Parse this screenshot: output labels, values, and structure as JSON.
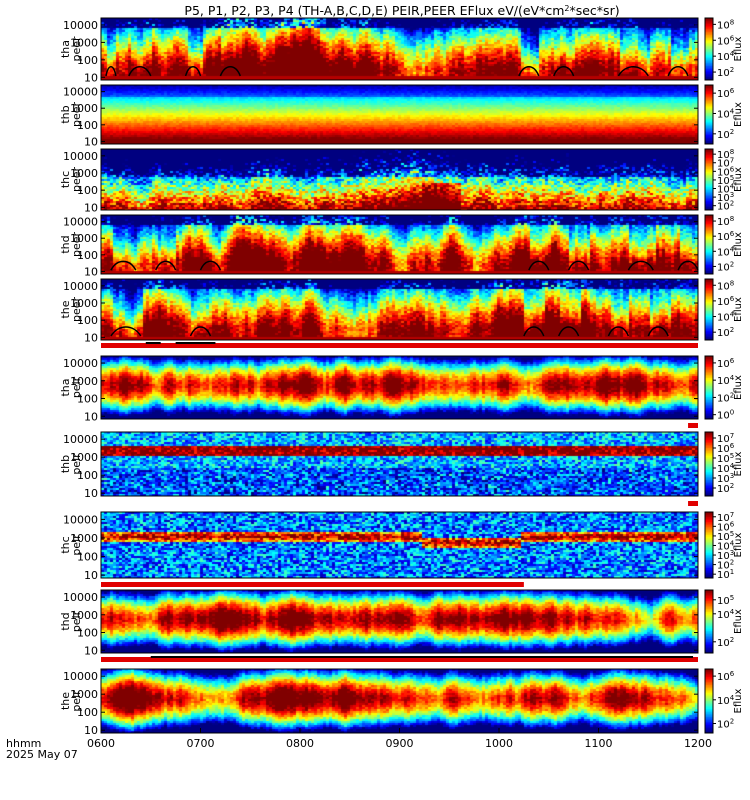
{
  "chart_data": {
    "type": "heatmap",
    "title": "P5, P1, P2, P3, P4 (TH-A,B,C,D,E) PEIR,PEER EFlux eV/(eV*cm² *sec*sr)",
    "title_main": "P5, P1, P2, P3, P4 (TH-A,B,C,D,E) PEIR,PEER EFlux eV/(eV*cm",
    "title_sup": "2",
    "title_tail": "*sec*sr)",
    "x_ticks": [
      "0600",
      "0700",
      "0800",
      "0900",
      "1000",
      "1100",
      "1200"
    ],
    "x_tick_hours": [
      6,
      7,
      8,
      9,
      10,
      11,
      12
    ],
    "xlim": [
      6,
      12
    ],
    "x_label_line1": "hhmm",
    "x_label_line2": "2025 May 07",
    "y_scale": "log",
    "ylim": [
      7,
      25000
    ],
    "y_ticks": [
      "10000",
      "1000",
      "100",
      "10"
    ],
    "y_tick_values": [
      10000,
      1000,
      100,
      10
    ],
    "colorbar_label": "Eflux",
    "panels": [
      {
        "probe": "tha",
        "species": "peer",
        "label_line1": "tha",
        "label_line2": "peer",
        "cb_exponents": [
          "8",
          "6",
          "4",
          "2"
        ],
        "cb_values": [
          8,
          6,
          4,
          2
        ],
        "cb_range": [
          1,
          8.8
        ],
        "seed": 11,
        "style": "electron",
        "sweeps": [
          [
            6.05,
            6.15
          ],
          [
            6.28,
            6.5
          ],
          [
            6.85,
            7.0
          ],
          [
            7.2,
            7.4
          ],
          [
            10.2,
            10.4
          ],
          [
            10.55,
            10.75
          ],
          [
            11.2,
            11.5
          ],
          [
            11.7,
            11.9
          ]
        ]
      },
      {
        "probe": "thb",
        "species": "peer",
        "label_line1": "thb",
        "label_line2": "peer",
        "cb_exponents": [
          "6",
          "4",
          "2"
        ],
        "cb_values": [
          6,
          4,
          2
        ],
        "cb_range": [
          1,
          6.8
        ],
        "seed": 23,
        "style": "smooth",
        "sweeps": []
      },
      {
        "probe": "thc",
        "species": "peer",
        "label_line1": "thc",
        "label_line2": "peer",
        "cb_exponents": [
          "8",
          "7",
          "6",
          "5",
          "4",
          "3",
          "2"
        ],
        "cb_values": [
          8,
          7,
          6,
          5,
          4,
          3,
          2
        ],
        "cb_range": [
          1.5,
          8.6
        ],
        "seed": 37,
        "style": "noisy",
        "sweeps": []
      },
      {
        "probe": "thd",
        "species": "peer",
        "label_line1": "thd",
        "label_line2": "peer",
        "cb_exponents": [
          "8",
          "6",
          "4",
          "2"
        ],
        "cb_values": [
          8,
          6,
          4,
          2
        ],
        "cb_range": [
          1,
          8.8
        ],
        "seed": 41,
        "style": "electron",
        "sweeps": [
          [
            6.1,
            6.35
          ],
          [
            6.55,
            6.75
          ],
          [
            7.0,
            7.2
          ],
          [
            10.3,
            10.5
          ],
          [
            10.7,
            10.9
          ],
          [
            11.3,
            11.55
          ],
          [
            11.8,
            12.0
          ]
        ]
      },
      {
        "probe": "the",
        "species": "peer",
        "label_line1": "the",
        "label_line2": "peer",
        "cb_exponents": [
          "8",
          "6",
          "4",
          "2"
        ],
        "cb_values": [
          8,
          6,
          4,
          2
        ],
        "cb_range": [
          1,
          8.8
        ],
        "seed": 53,
        "style": "electron",
        "sweeps": [
          [
            6.1,
            6.4
          ],
          [
            6.9,
            7.1
          ],
          [
            10.25,
            10.45
          ],
          [
            10.6,
            10.8
          ],
          [
            11.1,
            11.3
          ],
          [
            11.5,
            11.7
          ]
        ]
      },
      {
        "probe": "tha",
        "species": "peir",
        "label_line1": "tha",
        "label_line2": "peir",
        "cb_exponents": [
          "6",
          "4",
          "2",
          "0"
        ],
        "cb_values": [
          6,
          4,
          2,
          0
        ],
        "cb_range": [
          -0.5,
          6.8
        ],
        "seed": 61,
        "style": "ion",
        "sweeps": []
      },
      {
        "probe": "thb",
        "species": "peir",
        "label_line1": "thb",
        "label_line2": "peir",
        "cb_exponents": [
          "7",
          "6",
          "5",
          "4",
          "3",
          "2"
        ],
        "cb_values": [
          7,
          6,
          5,
          4,
          3,
          2
        ],
        "cb_range": [
          1.2,
          7.6
        ],
        "seed": 71,
        "style": "band",
        "sweeps": []
      },
      {
        "probe": "thc",
        "species": "peir",
        "label_line1": "thc",
        "label_line2": "peir",
        "cb_exponents": [
          "7",
          "6",
          "5",
          "4",
          "3",
          "2",
          "1"
        ],
        "cb_values": [
          7,
          6,
          5,
          4,
          3,
          2,
          1
        ],
        "cb_range": [
          0.6,
          7.5
        ],
        "seed": 83,
        "style": "band2",
        "sweeps": []
      },
      {
        "probe": "thd",
        "species": "peir",
        "label_line1": "thd",
        "label_line2": "peir",
        "cb_exponents": [
          "5",
          "4",
          "2"
        ],
        "cb_values": [
          5,
          4,
          2
        ],
        "cb_range": [
          1.2,
          5.7
        ],
        "seed": 97,
        "style": "ion",
        "sweeps": []
      },
      {
        "probe": "the",
        "species": "peir",
        "label_line1": "the",
        "label_line2": "peir",
        "cb_exponents": [
          "6",
          "4",
          "2"
        ],
        "cb_values": [
          6,
          4,
          2
        ],
        "cb_range": [
          1.2,
          6.6
        ],
        "seed": 101,
        "style": "ion",
        "sweeps": []
      }
    ],
    "flag_bars": [
      {
        "after_panel": 4,
        "color": "#e00000",
        "extent": [
          6.0,
          12.0
        ],
        "black_segments": [
          [
            6.45,
            6.6
          ],
          [
            6.75,
            7.15
          ]
        ]
      },
      {
        "after_panel": 5,
        "color": "#e00000",
        "extent": [
          11.9,
          12.0
        ],
        "black_segments": []
      },
      {
        "after_panel": 6,
        "color": "#e00000",
        "extent": [
          11.9,
          12.0
        ],
        "black_segments": []
      },
      {
        "after_panel": 7,
        "color": "#e00000",
        "extent": [
          6.0,
          10.25
        ],
        "black_segments": []
      },
      {
        "after_panel": 8,
        "color": "#e00000",
        "extent": [
          6.0,
          12.0
        ],
        "black_segments": [
          [
            6.5,
            11.95
          ]
        ]
      }
    ]
  },
  "colors": {
    "background": "#ffffff",
    "axis": "#000000",
    "flag_red": "#e00000"
  }
}
